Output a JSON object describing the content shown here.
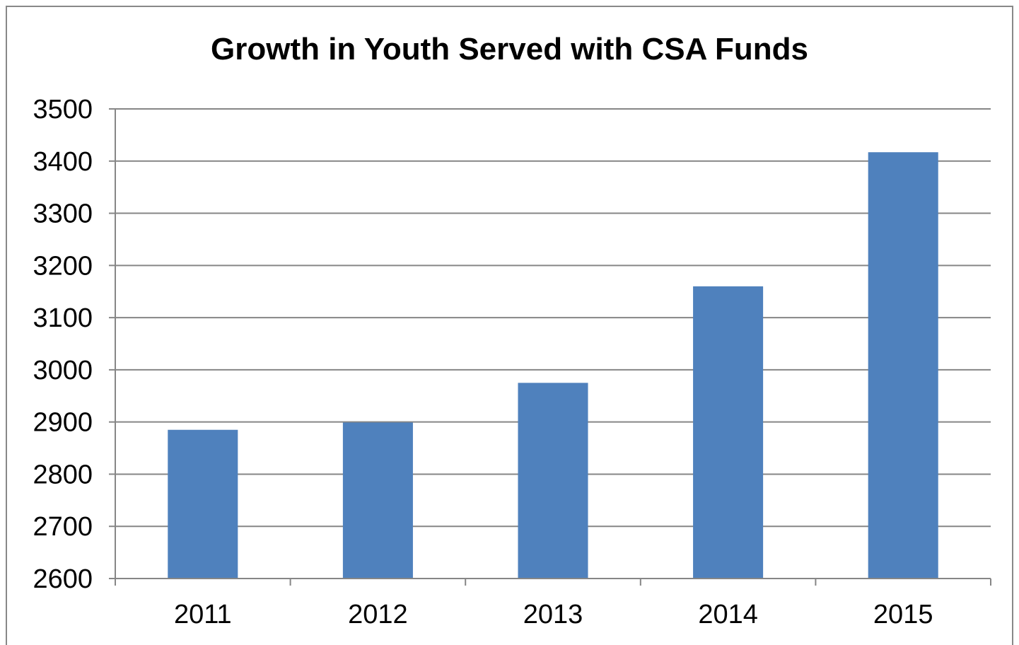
{
  "chart_data": {
    "type": "bar",
    "title": "Growth in Youth Served with CSA Funds",
    "xlabel": "",
    "ylabel": "",
    "categories": [
      "2011",
      "2012",
      "2013",
      "2014",
      "2015"
    ],
    "values": [
      2885,
      2899,
      2975,
      3160,
      3417
    ],
    "ylim": [
      2600,
      3500
    ],
    "yticks": [
      2600,
      2700,
      2800,
      2900,
      3000,
      3100,
      3200,
      3300,
      3400,
      3500
    ],
    "ytick_labels": [
      "2600",
      "2700",
      "2800",
      "2900",
      "3000",
      "3100",
      "3200",
      "3300",
      "3400",
      "3500"
    ],
    "grid": true,
    "legend": "none",
    "bar_color": "#4F81BD",
    "grid_color": "#868686"
  }
}
